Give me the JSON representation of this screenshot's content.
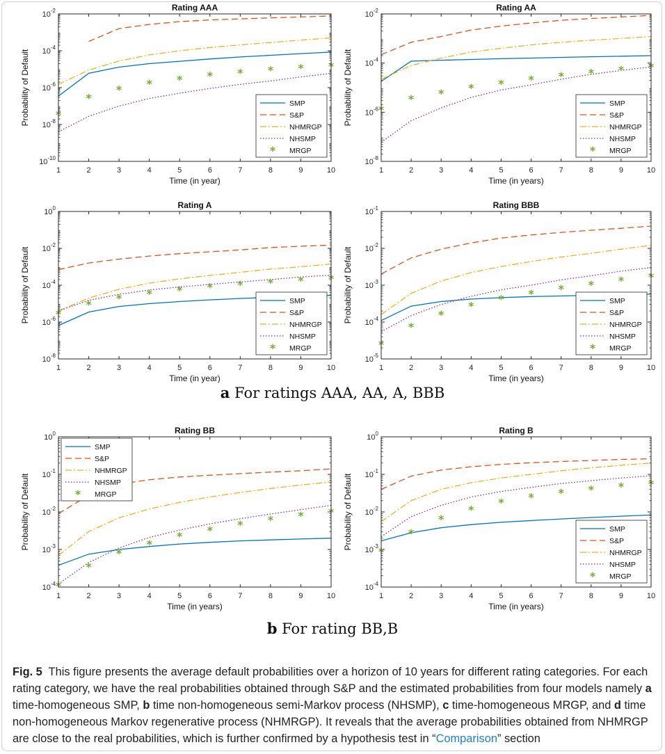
{
  "figure": {
    "subfigure_a": {
      "letter": "a",
      "text": "For ratings AAA, AA, A, BBB"
    },
    "subfigure_b": {
      "letter": "b",
      "text": "For rating BB,B"
    },
    "caption": {
      "label": "Fig. 5",
      "p1": "This figure presents the average default probabilities over a horizon of 10 years for different rating categories. For each rating category, we have the real probabilities obtained through S&P and the estimated probabilities from four models namely ",
      "a": "a",
      "p2": " time-homogeneous SMP, ",
      "b": "b",
      "p3": " time non-homogeneous semi-Markov process (NHSMP), ",
      "c": "c",
      "p4": " time-homogeneous MRGP, and ",
      "d": "d",
      "p5": " time non-homogeneous Markov regenerative process (NHMRGP). It reveals that the average probabilities obtained from NHMRGP are close to the real probabilities, which is further confirmed by a hypothesis test in “",
      "link": "Comparison",
      "p6": "” section"
    }
  },
  "colors": {
    "SMP": "#0072bd",
    "S&P": "#d95319",
    "NHMRGP": "#edb120",
    "NHSMP": "#7e2f8e",
    "MRGP": "#77ac30"
  },
  "chart_data": [
    {
      "type": "line",
      "title": "Rating AAA",
      "xlabel": "Time (in year)",
      "ylabel": "Probability of Default",
      "yscale": "log",
      "ylim_exp": [
        -10,
        -2
      ],
      "ytick_exp": [
        -10,
        -8,
        -6,
        -4,
        -2
      ],
      "xlim": [
        1,
        10
      ],
      "x": [
        1,
        2,
        3,
        4,
        5,
        6,
        7,
        8,
        9,
        10
      ],
      "legend": "bottom-right",
      "series": [
        {
          "name": "SMP",
          "values": [
            3.5e-07,
            6e-06,
            1.3e-05,
            2e-05,
            2.7e-05,
            3.6e-05,
            4.6e-05,
            5.7e-05,
            7e-05,
            8.5e-05
          ]
        },
        {
          "name": "S&P",
          "values": [
            null,
            0.00032,
            0.0016,
            0.0027,
            0.0038,
            0.0047,
            0.0054,
            0.0061,
            0.0068,
            0.0078
          ]
        },
        {
          "name": "NHMRGP",
          "values": [
            1.5e-06,
            9e-06,
            2.8e-05,
            6e-05,
            0.0001,
            0.00015,
            0.00021,
            0.00028,
            0.00038,
            0.0005
          ]
        },
        {
          "name": "NHSMP",
          "values": [
            4e-09,
            2.8e-08,
            1e-07,
            2.6e-07,
            5e-07,
            9e-07,
            1.5e-06,
            2.3e-06,
            3.8e-06,
            6e-06
          ]
        },
        {
          "name": "MRGP",
          "values": [
            3.5e-08,
            2.8e-07,
            8e-07,
            1.7e-06,
            2.8e-06,
            4.5e-06,
            6.5e-06,
            9e-06,
            1.2e-05,
            1.5e-05
          ]
        }
      ]
    },
    {
      "type": "line",
      "title": "Rating AA",
      "xlabel": "Time (in years)",
      "ylabel": "Probability of Default",
      "yscale": "log",
      "ylim_exp": [
        -8,
        -2
      ],
      "ytick_exp": [
        -8,
        -6,
        -4,
        -2
      ],
      "xlim": [
        1,
        10
      ],
      "x": [
        1,
        2,
        3,
        4,
        5,
        6,
        7,
        8,
        9,
        10
      ],
      "legend": "bottom-right",
      "series": [
        {
          "name": "SMP",
          "values": [
            1.8e-05,
            0.00012,
            0.00013,
            0.00014,
            0.00015,
            0.00016,
            0.00017,
            0.00018,
            0.00019,
            0.0002
          ]
        },
        {
          "name": "S&P",
          "values": [
            0.00022,
            0.0007,
            0.0012,
            0.0022,
            0.0032,
            0.0043,
            0.0055,
            0.0065,
            0.0075,
            0.0087
          ]
        },
        {
          "name": "NHMRGP",
          "values": [
            2.2e-05,
            8e-05,
            0.00016,
            0.00028,
            0.0004,
            0.00055,
            0.0007,
            0.00085,
            0.001,
            0.0012
          ]
        },
        {
          "name": "NHSMP",
          "values": [
            6e-08,
            4.5e-07,
            1.5e-06,
            4e-06,
            8e-06,
            1.3e-05,
            2.2e-05,
            3.5e-05,
            5e-05,
            7e-05
          ]
        },
        {
          "name": "MRGP",
          "values": [
            1.3e-06,
            3.5e-06,
            6e-06,
            1e-05,
            1.5e-05,
            2.2e-05,
            3e-05,
            4e-05,
            5.5e-05,
            7e-05
          ]
        }
      ]
    },
    {
      "type": "line",
      "title": "Rating A",
      "xlabel": "Time (in year)",
      "ylabel": "Probability of Default",
      "yscale": "log",
      "ylim_exp": [
        -8,
        0
      ],
      "ytick_exp": [
        -8,
        -6,
        -4,
        -2,
        0
      ],
      "xlim": [
        1,
        10
      ],
      "x": [
        1,
        2,
        3,
        4,
        5,
        6,
        7,
        8,
        9,
        10
      ],
      "legend": "bottom-right",
      "series": [
        {
          "name": "SMP",
          "values": [
            6.5e-07,
            3.5e-06,
            7e-06,
            1e-05,
            1.3e-05,
            1.6e-05,
            1.9e-05,
            2.2e-05,
            2.5e-05,
            2.8e-05
          ]
        },
        {
          "name": "S&P",
          "values": [
            0.0007,
            0.0016,
            0.0026,
            0.0038,
            0.0051,
            0.0065,
            0.0082,
            0.011,
            0.013,
            0.015
          ]
        },
        {
          "name": "NHMRGP",
          "values": [
            4e-06,
            2e-05,
            6e-05,
            0.00013,
            0.00022,
            0.00034,
            0.0005,
            0.00075,
            0.001,
            0.0014
          ]
        },
        {
          "name": "NHSMP",
          "values": [
            4e-06,
            1.5e-05,
            3.2e-05,
            5.5e-05,
            8e-05,
            0.00011,
            0.00015,
            0.0002,
            0.00028,
            0.00035
          ]
        },
        {
          "name": "MRGP",
          "values": [
            2.8e-06,
            9e-06,
            2e-05,
            3.5e-05,
            5.5e-05,
            8e-05,
            0.00011,
            0.00014,
            0.00018,
            0.00023
          ]
        }
      ]
    },
    {
      "type": "line",
      "title": "Rating BBB",
      "xlabel": "Time (in years)",
      "ylabel": "Probability of Default",
      "yscale": "log",
      "ylim_exp": [
        -5,
        -1
      ],
      "ytick_exp": [
        -5,
        -4,
        -3,
        -2,
        -1
      ],
      "xlim": [
        1,
        10
      ],
      "x": [
        1,
        2,
        3,
        4,
        5,
        6,
        7,
        8,
        9,
        10
      ],
      "legend": "bottom-right",
      "series": [
        {
          "name": "SMP",
          "values": [
            0.00011,
            0.00027,
            0.00036,
            0.00042,
            0.00046,
            0.00049,
            0.00051,
            0.00053,
            0.00055,
            0.00057
          ]
        },
        {
          "name": "S&P",
          "values": [
            0.002,
            0.0055,
            0.0095,
            0.014,
            0.019,
            0.023,
            0.027,
            0.031,
            0.035,
            0.04
          ]
        },
        {
          "name": "NHMRGP",
          "values": [
            0.00016,
            0.0006,
            0.0013,
            0.0022,
            0.0032,
            0.0044,
            0.0058,
            0.0073,
            0.0095,
            0.012
          ]
        },
        {
          "name": "NHSMP",
          "values": [
            5.5e-05,
            0.00015,
            0.0003,
            0.0005,
            0.00075,
            0.001,
            0.0014,
            0.0018,
            0.0024,
            0.003
          ]
        },
        {
          "name": "MRGP",
          "values": [
            2.5e-05,
            7.5e-05,
            0.00016,
            0.00028,
            0.00043,
            0.0006,
            0.0008,
            0.00105,
            0.00135,
            0.0017
          ]
        }
      ]
    },
    {
      "type": "line",
      "title": "Rating BB",
      "xlabel": "Time (in years)",
      "ylabel": "Probability of Default",
      "yscale": "log",
      "ylim_exp": [
        -4,
        0
      ],
      "ytick_exp": [
        -4,
        -3,
        -2,
        -1,
        0
      ],
      "xlim": [
        1,
        10
      ],
      "x": [
        1,
        2,
        3,
        4,
        5,
        6,
        7,
        8,
        9,
        10
      ],
      "legend": "top-left",
      "series": [
        {
          "name": "SMP",
          "values": [
            0.00038,
            0.00075,
            0.001,
            0.0012,
            0.0014,
            0.00155,
            0.0017,
            0.0018,
            0.0019,
            0.002
          ]
        },
        {
          "name": "S&P",
          "values": [
            0.009,
            0.028,
            0.055,
            0.072,
            0.085,
            0.095,
            0.105,
            0.115,
            0.125,
            0.14
          ]
        },
        {
          "name": "NHMRGP",
          "values": [
            0.0007,
            0.003,
            0.007,
            0.012,
            0.018,
            0.025,
            0.033,
            0.042,
            0.052,
            0.063
          ]
        },
        {
          "name": "NHSMP",
          "values": [
            0.00012,
            0.00045,
            0.0011,
            0.0021,
            0.0033,
            0.0048,
            0.0066,
            0.0088,
            0.0115,
            0.015
          ]
        },
        {
          "name": "MRGP",
          "values": [
            0.00011,
            0.00035,
            0.0008,
            0.0014,
            0.0023,
            0.0033,
            0.0046,
            0.0062,
            0.008,
            0.01
          ]
        }
      ]
    },
    {
      "type": "line",
      "title": "Rating B",
      "xlabel": "Time (in years)",
      "ylabel": "Probability of Default",
      "yscale": "log",
      "ylim_exp": [
        -4,
        0
      ],
      "ytick_exp": [
        -4,
        -3,
        -2,
        -1,
        0
      ],
      "xlim": [
        1,
        10
      ],
      "x": [
        1,
        2,
        3,
        4,
        5,
        6,
        7,
        8,
        9,
        10
      ],
      "legend": "bottom-right",
      "series": [
        {
          "name": "SMP",
          "values": [
            0.0017,
            0.0028,
            0.0038,
            0.0046,
            0.0053,
            0.0059,
            0.0065,
            0.0071,
            0.0077,
            0.0083
          ]
        },
        {
          "name": "S&P",
          "values": [
            0.04,
            0.09,
            0.13,
            0.16,
            0.185,
            0.205,
            0.22,
            0.235,
            0.25,
            0.26
          ]
        },
        {
          "name": "NHMRGP",
          "values": [
            0.0055,
            0.02,
            0.04,
            0.06,
            0.08,
            0.1,
            0.125,
            0.15,
            0.175,
            0.2
          ]
        },
        {
          "name": "NHSMP",
          "values": [
            0.0022,
            0.0075,
            0.015,
            0.025,
            0.035,
            0.045,
            0.057,
            0.068,
            0.08,
            0.092
          ]
        },
        {
          "name": "MRGP",
          "values": [
            0.0009,
            0.0028,
            0.0065,
            0.0115,
            0.018,
            0.025,
            0.033,
            0.04,
            0.048,
            0.056
          ]
        }
      ]
    }
  ]
}
